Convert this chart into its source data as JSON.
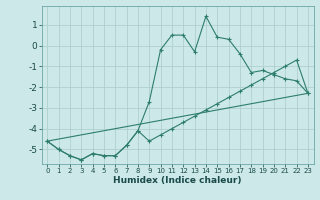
{
  "title": "",
  "xlabel": "Humidex (Indice chaleur)",
  "background_color": "#cce8e8",
  "grid_color": "#aacccc",
  "line_color": "#2e7d6e",
  "xlim": [
    -0.5,
    23.5
  ],
  "ylim": [
    -5.7,
    1.9
  ],
  "yticks": [
    1,
    0,
    -1,
    -2,
    -3,
    -4,
    -5
  ],
  "xticks": [
    0,
    1,
    2,
    3,
    4,
    5,
    6,
    7,
    8,
    9,
    10,
    11,
    12,
    13,
    14,
    15,
    16,
    17,
    18,
    19,
    20,
    21,
    22,
    23
  ],
  "series1_x": [
    0,
    1,
    2,
    3,
    4,
    5,
    6,
    7,
    8,
    9,
    10,
    11,
    12,
    13,
    14,
    15,
    16,
    17,
    18,
    19,
    20,
    21,
    22,
    23
  ],
  "series1_y": [
    -4.6,
    -5.0,
    -5.3,
    -5.5,
    -5.2,
    -5.3,
    -5.3,
    -4.8,
    -4.1,
    -2.7,
    -0.2,
    0.5,
    0.5,
    -0.3,
    1.4,
    0.4,
    0.3,
    -0.4,
    -1.3,
    -1.2,
    -1.4,
    -1.6,
    -1.7,
    -2.3
  ],
  "series2_x": [
    0,
    1,
    2,
    3,
    4,
    5,
    6,
    7,
    8,
    9,
    10,
    11,
    12,
    13,
    14,
    15,
    16,
    17,
    18,
    19,
    20,
    21,
    22,
    23
  ],
  "series2_y": [
    -4.6,
    -5.0,
    -5.3,
    -5.5,
    -5.2,
    -5.3,
    -5.3,
    -4.8,
    -4.1,
    -4.6,
    -4.3,
    -4.0,
    -3.7,
    -3.4,
    -3.1,
    -2.8,
    -2.5,
    -2.2,
    -1.9,
    -1.6,
    -1.3,
    -1.0,
    -0.7,
    -2.3
  ],
  "series3_x": [
    0,
    23
  ],
  "series3_y": [
    -4.6,
    -2.3
  ]
}
